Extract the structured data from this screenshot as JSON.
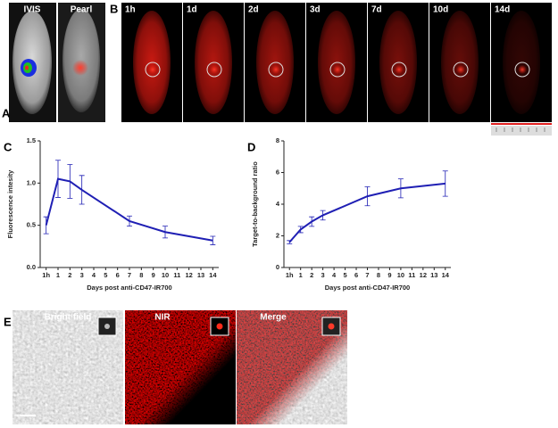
{
  "panel_labels": [
    "A",
    "B",
    "C",
    "D",
    "E"
  ],
  "imaging_labels": [
    "IVIS",
    "Pearl"
  ],
  "timepoints": [
    "1h",
    "1d",
    "2d",
    "3d",
    "7d",
    "10d",
    "14d"
  ],
  "microscopy_labels": [
    "Bright field",
    "NIR",
    "Merge"
  ],
  "chart_data": [
    {
      "type": "line",
      "x_label": "Days post anti-CD47-IR700",
      "y_label": "Fluorescence intesity",
      "x": [
        0,
        1,
        2,
        3,
        7,
        10,
        14
      ],
      "values": [
        0.5,
        1.05,
        1.02,
        0.92,
        0.55,
        0.42,
        0.32
      ],
      "errors": [
        0.1,
        0.22,
        0.2,
        0.17,
        0.06,
        0.07,
        0.05
      ],
      "color": "#1f1fb4",
      "xlim": [
        -0.5,
        14.5
      ],
      "xticks": [
        {
          "value": 0,
          "label": "1h"
        },
        1,
        2,
        3,
        4,
        5,
        6,
        7,
        8,
        9,
        10,
        11,
        12,
        13,
        14
      ],
      "ylim": [
        0,
        1.5
      ],
      "yticks": [
        {
          "value": 0,
          "label": "0.0"
        },
        0.5,
        {
          "value": 1,
          "label": "1.0"
        },
        1.5
      ]
    },
    {
      "type": "line",
      "x_label": "Days post anti-CD47-IR700",
      "y_label": "Target-to-background ratio",
      "x": [
        0,
        1,
        2,
        3,
        7,
        10,
        14
      ],
      "values": [
        1.6,
        2.4,
        2.9,
        3.3,
        4.5,
        5.0,
        5.3
      ],
      "errors": [
        0.1,
        0.2,
        0.3,
        0.3,
        0.6,
        0.6,
        0.8
      ],
      "color": "#1f1fb4",
      "xlim": [
        -0.5,
        14.5
      ],
      "xticks": [
        {
          "value": 0,
          "label": "1h"
        },
        1,
        2,
        3,
        4,
        5,
        6,
        7,
        8,
        9,
        10,
        11,
        12,
        13,
        14
      ],
      "ylim": [
        0,
        8
      ],
      "yticks": [
        0,
        2,
        4,
        6,
        8
      ]
    }
  ]
}
